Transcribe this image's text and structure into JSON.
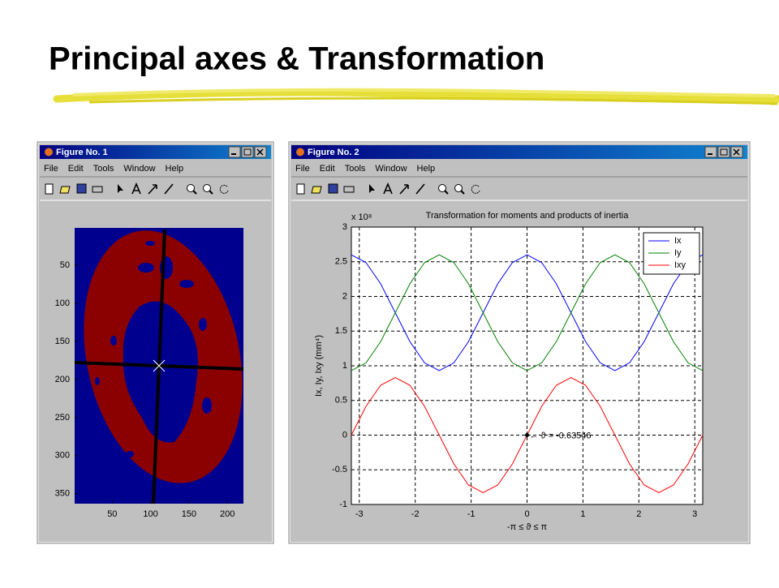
{
  "title": "Principal axes & Transformation",
  "windows": [
    {
      "title": "Figure No. 1",
      "menu": [
        "File",
        "Edit",
        "Tools",
        "Window",
        "Help"
      ]
    },
    {
      "title": "Figure No. 2",
      "menu": [
        "File",
        "Edit",
        "Tools",
        "Window",
        "Help"
      ]
    }
  ],
  "chart_data": [
    {
      "type": "image",
      "xlim": [
        1,
        221
      ],
      "ylim": [
        1,
        363
      ],
      "xticks": [
        50,
        100,
        150,
        200
      ],
      "yticks": [
        50,
        100,
        150,
        200,
        250,
        300,
        350
      ]
    },
    {
      "type": "line",
      "title": "Transformation for moments and products of inertia",
      "x_label": "-π ≤ ϑ ≤ π",
      "y_label": "Ix, Iy, Ixy (mm⁴)",
      "y_multiplier": "x 10⁸",
      "x": [
        -3.1416,
        -2.8798,
        -2.618,
        -2.3562,
        -2.0944,
        -1.8326,
        -1.5708,
        -1.309,
        -1.0472,
        -0.7854,
        -0.5236,
        -0.2618,
        0,
        0.2618,
        0.5236,
        0.7854,
        1.0472,
        1.309,
        1.5708,
        1.8326,
        2.0944,
        2.3562,
        2.618,
        2.8798,
        3.1416
      ],
      "series": [
        {
          "name": "Ix",
          "color": "#0000ff",
          "values": [
            2.6,
            2.488,
            2.183,
            1.765,
            1.348,
            1.042,
            0.93,
            1.042,
            1.348,
            1.765,
            2.183,
            2.488,
            2.6,
            2.488,
            2.183,
            1.765,
            1.348,
            1.042,
            0.93,
            1.042,
            1.348,
            1.765,
            2.183,
            2.488,
            2.6
          ]
        },
        {
          "name": "Iy",
          "color": "#008000",
          "values": [
            0.93,
            1.042,
            1.348,
            1.765,
            2.183,
            2.488,
            2.6,
            2.488,
            2.183,
            1.765,
            1.348,
            1.042,
            0.93,
            1.042,
            1.348,
            1.765,
            2.183,
            2.488,
            2.6,
            2.488,
            2.183,
            1.765,
            1.348,
            1.042,
            0.93
          ]
        },
        {
          "name": "Ixy",
          "color": "#ff0000",
          "values": [
            0,
            0.415,
            0.719,
            0.83,
            0.719,
            0.415,
            0,
            -0.415,
            -0.719,
            -0.83,
            -0.719,
            -0.415,
            0,
            0.415,
            0.719,
            0.83,
            0.719,
            0.415,
            0,
            -0.415,
            -0.719,
            -0.83,
            -0.719,
            -0.415,
            0
          ]
        }
      ],
      "annotation": {
        "text": "← ϑ = -0.63546",
        "x": 0,
        "y": 0
      },
      "xlim": [
        -3.1416,
        3.1416
      ],
      "ylim": [
        -1,
        3
      ],
      "xticks": [
        -3,
        -2,
        -1,
        0,
        1,
        2,
        3
      ],
      "yticks": [
        -1,
        -0.5,
        0,
        0.5,
        1,
        1.5,
        2,
        2.5,
        3
      ],
      "grid": true,
      "legend": "top-right"
    }
  ]
}
